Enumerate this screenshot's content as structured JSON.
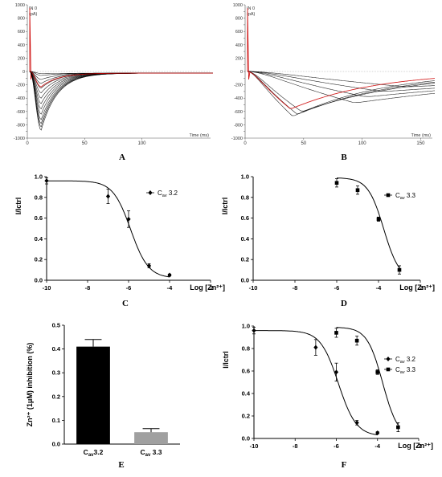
{
  "chart_data": [
    {
      "panel": "A",
      "type": "line",
      "xlabel": "Time (ms)",
      "ylabel_lines": [
        "IN 0",
        "(pA)"
      ],
      "xlim": [
        0,
        160
      ],
      "ylim": [
        -1000,
        1000
      ],
      "xticks": [
        0,
        50,
        100
      ],
      "yticks": [
        1000,
        900,
        800,
        700,
        600,
        500,
        400,
        300,
        200,
        100,
        0,
        -100,
        -200,
        -300,
        -400,
        -500,
        -600,
        -700,
        -800,
        -900,
        -1000
      ],
      "series": [
        {
          "peak": -880,
          "color": "#000000"
        },
        {
          "peak": -830,
          "color": "#000000"
        },
        {
          "peak": -780,
          "color": "#000000"
        },
        {
          "peak": -720,
          "color": "#000000"
        },
        {
          "peak": -640,
          "color": "#000000"
        },
        {
          "peak": -560,
          "color": "#000000"
        },
        {
          "peak": -480,
          "color": "#000000"
        },
        {
          "peak": -400,
          "color": "#000000"
        },
        {
          "peak": -320,
          "color": "#000000"
        },
        {
          "peak": -250,
          "color": "#000000"
        },
        {
          "peak": -180,
          "color": "#000000"
        },
        {
          "peak": -120,
          "color": "#000000"
        },
        {
          "peak": -60,
          "color": "#000000"
        },
        {
          "peak": -30,
          "color": "#000000"
        },
        {
          "peak": -230,
          "color": "#cc0000"
        }
      ]
    },
    {
      "panel": "B",
      "type": "line",
      "xlabel": "Time (ms)",
      "ylabel_lines": [
        "IN 0",
        "(pA)"
      ],
      "xlim": [
        0,
        160
      ],
      "ylim": [
        -1000,
        1000
      ],
      "xticks": [
        0,
        50,
        100,
        150
      ],
      "yticks": [
        1000,
        900,
        800,
        700,
        600,
        500,
        400,
        300,
        200,
        100,
        0,
        -100,
        -200,
        -300,
        -400,
        -500,
        -600,
        -700,
        -800,
        -900,
        -1000
      ],
      "series": [
        {
          "peak": -670,
          "tpeak": 40,
          "color": "#000000"
        },
        {
          "peak": -640,
          "tpeak": 44,
          "color": "#000000"
        },
        {
          "peak": -600,
          "tpeak": 48,
          "color": "#000000"
        },
        {
          "peak": -470,
          "tpeak": 95,
          "color": "#000000"
        },
        {
          "peak": -380,
          "tpeak": 105,
          "color": "#000000"
        },
        {
          "peak": -300,
          "tpeak": 120,
          "color": "#000000"
        },
        {
          "peak": -230,
          "tpeak": 140,
          "color": "#000000"
        },
        {
          "peak": -560,
          "tpeak": 38,
          "color": "#cc0000"
        }
      ]
    },
    {
      "panel": "C",
      "type": "scatter",
      "ylabel": "I/Ictrl",
      "xlabel": "Log [Zn²⁺]",
      "xlim": [
        -10,
        -2
      ],
      "ylim": [
        0,
        1
      ],
      "xticks": [
        -10,
        -8,
        -6,
        -4,
        -2
      ],
      "yticks": [
        0.0,
        0.2,
        0.4,
        0.6,
        0.8,
        1.0
      ],
      "series": [
        {
          "legend_main": "C",
          "legend_sub": "av",
          "legend_rest": " 3.2",
          "marker": "diamond",
          "x": [
            -10,
            -7,
            -6,
            -5,
            -4
          ],
          "y": [
            0.96,
            0.81,
            0.59,
            0.14,
            0.05
          ],
          "err": [
            0.03,
            0.07,
            0.08,
            0.02,
            0.01
          ],
          "fit": {
            "top": 0.96,
            "bottom": 0.02,
            "logIC50": -5.9,
            "hill": 1.0
          }
        }
      ]
    },
    {
      "panel": "D",
      "type": "scatter",
      "ylabel": "I/Ictrl",
      "xlabel": "Log [Zn²⁺]",
      "xlim": [
        -10,
        -2
      ],
      "ylim": [
        0,
        1
      ],
      "xticks": [
        -10,
        -8,
        -6,
        -4,
        -2
      ],
      "yticks": [
        0.0,
        0.2,
        0.4,
        0.6,
        0.8,
        1.0
      ],
      "series": [
        {
          "legend_main": "C",
          "legend_sub": "av",
          "legend_rest": " 3.3",
          "marker": "square",
          "x": [
            -6,
            -5,
            -4,
            -3
          ],
          "y": [
            0.94,
            0.87,
            0.59,
            0.1
          ],
          "err": [
            0.04,
            0.04,
            0.02,
            0.04
          ],
          "fit": {
            "top": 0.99,
            "bottom": 0.0,
            "logIC50": -3.75,
            "hill": 1.15
          }
        }
      ]
    },
    {
      "panel": "E",
      "type": "bar",
      "ylabel": "Zn²⁺ (1μM) inhibition (%)",
      "ylim": [
        0,
        0.5
      ],
      "yticks": [
        0.0,
        0.1,
        0.2,
        0.3,
        0.4,
        0.5
      ],
      "categories": [
        "Cav3.2",
        "Cav 3.3"
      ],
      "category_parts": [
        [
          "C",
          "av",
          "3.2"
        ],
        [
          "C",
          "av",
          " 3.3"
        ]
      ],
      "values": [
        0.41,
        0.05
      ],
      "err": [
        0.03,
        0.015
      ],
      "colors": [
        "#000000",
        "#a0a0a0"
      ]
    },
    {
      "panel": "F",
      "type": "scatter",
      "ylabel": "I/Ictrl",
      "xlabel": "Log [Zn²⁺]",
      "xlim": [
        -10,
        -2
      ],
      "ylim": [
        0,
        1
      ],
      "xticks": [
        -10,
        -8,
        -6,
        -4,
        -2
      ],
      "yticks": [
        0.0,
        0.2,
        0.4,
        0.6,
        0.8,
        1.0
      ],
      "series": [
        {
          "legend_main": "C",
          "legend_sub": "av",
          "legend_rest": " 3.2",
          "marker": "diamond",
          "x": [
            -10,
            -7,
            -6,
            -5,
            -4
          ],
          "y": [
            0.96,
            0.81,
            0.59,
            0.14,
            0.05
          ],
          "err": [
            0.03,
            0.07,
            0.08,
            0.02,
            0.01
          ],
          "fit": {
            "top": 0.96,
            "bottom": 0.02,
            "logIC50": -5.9,
            "hill": 1.0
          }
        },
        {
          "legend_main": "C",
          "legend_sub": "av",
          "legend_rest": " 3.3",
          "marker": "square",
          "x": [
            -6,
            -5,
            -4,
            -3
          ],
          "y": [
            0.94,
            0.87,
            0.59,
            0.1
          ],
          "err": [
            0.04,
            0.04,
            0.02,
            0.04
          ],
          "fit": {
            "top": 0.99,
            "bottom": 0.0,
            "logIC50": -3.75,
            "hill": 1.15
          }
        }
      ]
    }
  ]
}
